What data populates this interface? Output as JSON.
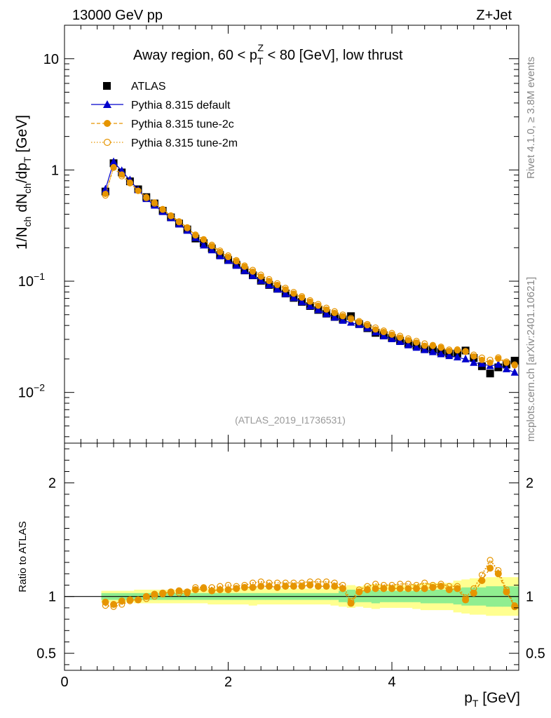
{
  "header": {
    "energy_label": "13000 GeV pp",
    "process_label": "Z+Jet"
  },
  "side_labels": {
    "rivet": "Rivet 4.1.0, ≥ 3.8M events",
    "mcplots": "mcplots.cern.ch [arXiv:2401.10621]"
  },
  "watermark": "(ATLAS_2019_I1736531)",
  "chart_data": [
    {
      "type": "scatter",
      "panel": "main",
      "title": "Away region, 60 < p_T^Z < 80 [GeV], low thrust",
      "title_parts": {
        "pre": "Away region, 60 < p",
        "sup": "Z",
        "sub": "T",
        "post": " < 80 [GeV], low thrust"
      },
      "ylabel": "1/N_ch dN_ch/dp_T [GeV]",
      "y_scale": "log",
      "xlim": [
        0,
        5.55
      ],
      "ylim": [
        0.0035,
        20
      ],
      "y_ticks": [
        {
          "value": 10,
          "label": "10"
        },
        {
          "value": 1,
          "label": "1"
        },
        {
          "value": 0.1,
          "label": "10",
          "exp": "−1"
        },
        {
          "value": 0.01,
          "label": "10",
          "exp": "−2"
        }
      ],
      "legend_position": "top-left",
      "x": [
        0.5,
        0.6,
        0.7,
        0.8,
        0.9,
        1.0,
        1.1,
        1.2,
        1.3,
        1.4,
        1.5,
        1.6,
        1.7,
        1.8,
        1.9,
        2.0,
        2.1,
        2.2,
        2.3,
        2.4,
        2.5,
        2.6,
        2.7,
        2.8,
        2.9,
        3.0,
        3.1,
        3.2,
        3.3,
        3.4,
        3.5,
        3.6,
        3.7,
        3.8,
        3.9,
        4.0,
        4.1,
        4.2,
        4.3,
        4.4,
        4.5,
        4.6,
        4.7,
        4.8,
        4.9,
        5.0,
        5.1,
        5.2,
        5.3,
        5.4,
        5.5
      ],
      "series": [
        {
          "name": "ATLAS",
          "marker": "square",
          "color": "#000000",
          "values": [
            0.64,
            1.15,
            0.95,
            0.79,
            0.67,
            0.57,
            0.5,
            0.43,
            0.375,
            0.33,
            0.292,
            0.242,
            0.22,
            0.197,
            0.172,
            0.155,
            0.141,
            0.125,
            0.113,
            0.101,
            0.0925,
            0.0855,
            0.0775,
            0.0708,
            0.0652,
            0.0598,
            0.0552,
            0.0511,
            0.0477,
            0.0455,
            0.0485,
            0.0412,
            0.0378,
            0.0343,
            0.0326,
            0.0309,
            0.0291,
            0.0275,
            0.0263,
            0.0245,
            0.0242,
            0.0231,
            0.0223,
            0.0224,
            0.0238,
            0.0204,
            0.0172,
            0.0148,
            0.0168,
            0.0178,
            0.0193
          ]
        },
        {
          "name": "Pythia 8.315 default",
          "marker": "triangle",
          "line": "solid",
          "color": "#0000cc",
          "values": [
            0.67,
            1.18,
            0.98,
            0.81,
            0.66,
            0.55,
            0.48,
            0.42,
            0.37,
            0.325,
            0.285,
            0.245,
            0.21,
            0.19,
            0.168,
            0.153,
            0.138,
            0.124,
            0.112,
            0.101,
            0.0922,
            0.0845,
            0.0768,
            0.0708,
            0.065,
            0.0595,
            0.0552,
            0.0507,
            0.0472,
            0.0442,
            0.0425,
            0.0405,
            0.0378,
            0.0348,
            0.0321,
            0.0302,
            0.0285,
            0.0266,
            0.0253,
            0.0241,
            0.0231,
            0.0221,
            0.0213,
            0.0207,
            0.0199,
            0.0185,
            0.0181,
            0.0173,
            0.0178,
            0.0162,
            0.0151
          ]
        },
        {
          "name": "Pythia 8.315 tune-2c",
          "marker": "circle",
          "line": "dashed",
          "color": "#e69500",
          "values": [
            0.61,
            1.06,
            0.91,
            0.77,
            0.65,
            0.57,
            0.51,
            0.445,
            0.39,
            0.345,
            0.305,
            0.258,
            0.236,
            0.207,
            0.183,
            0.165,
            0.151,
            0.135,
            0.122,
            0.11,
            0.1005,
            0.0925,
            0.0842,
            0.0772,
            0.0712,
            0.0655,
            0.0602,
            0.0556,
            0.0518,
            0.0485,
            0.0455,
            0.0428,
            0.0402,
            0.0368,
            0.0349,
            0.0331,
            0.0311,
            0.0295,
            0.0281,
            0.0263,
            0.0262,
            0.0252,
            0.0236,
            0.0239,
            0.0232,
            0.0211,
            0.0196,
            0.0185,
            0.0201,
            0.0185,
            0.0175
          ]
        },
        {
          "name": "Pythia 8.315 tune-2m",
          "marker": "open-circle",
          "line": "dotted",
          "color": "#e69500",
          "values": [
            0.59,
            1.05,
            0.88,
            0.76,
            0.65,
            0.56,
            0.5,
            0.44,
            0.385,
            0.34,
            0.3,
            0.262,
            0.238,
            0.212,
            0.188,
            0.17,
            0.154,
            0.138,
            0.126,
            0.114,
            0.104,
            0.0955,
            0.0868,
            0.0796,
            0.0731,
            0.0673,
            0.0622,
            0.0575,
            0.0535,
            0.05,
            0.0465,
            0.0437,
            0.0411,
            0.0382,
            0.0359,
            0.0341,
            0.0322,
            0.0305,
            0.029,
            0.0275,
            0.0266,
            0.0257,
            0.0242,
            0.0243,
            0.0235,
            0.0218,
            0.0205,
            0.0196,
            0.0206,
            0.0189,
            0.0178
          ]
        }
      ]
    },
    {
      "type": "scatter",
      "panel": "ratio",
      "ylabel": "Ratio to ATLAS",
      "xlabel": "p_T [GeV]",
      "xlabel_parts": {
        "main": "p",
        "sub": "T",
        "post": " [GeV]"
      },
      "xlim": [
        0,
        5.55
      ],
      "ylim": [
        0.35,
        2.35
      ],
      "x_ticks": [
        {
          "value": 0,
          "label": "0"
        },
        {
          "value": 2,
          "label": "2"
        },
        {
          "value": 4,
          "label": "4"
        }
      ],
      "y_ticks": [
        {
          "value": 2,
          "label": "2"
        },
        {
          "value": 1,
          "label": "1"
        },
        {
          "value": 0.5,
          "label": "0.5"
        }
      ],
      "x": [
        0.5,
        0.6,
        0.7,
        0.8,
        0.9,
        1.0,
        1.1,
        1.2,
        1.3,
        1.4,
        1.5,
        1.6,
        1.7,
        1.8,
        1.9,
        2.0,
        2.1,
        2.2,
        2.3,
        2.4,
        2.5,
        2.6,
        2.7,
        2.8,
        2.9,
        3.0,
        3.1,
        3.2,
        3.3,
        3.4,
        3.5,
        3.6,
        3.7,
        3.8,
        3.9,
        4.0,
        4.1,
        4.2,
        4.3,
        4.4,
        4.5,
        4.6,
        4.7,
        4.8,
        4.9,
        5.0,
        5.1,
        5.2,
        5.3,
        5.4,
        5.5
      ],
      "uncertainty_bands": {
        "stat_color": "#90ee90",
        "total_color": "#ffff90",
        "stat_halfwidth": [
          0.03,
          0.03,
          0.03,
          0.03,
          0.03,
          0.03,
          0.03,
          0.03,
          0.03,
          0.03,
          0.03,
          0.03,
          0.03,
          0.03,
          0.03,
          0.03,
          0.03,
          0.03,
          0.03,
          0.03,
          0.03,
          0.03,
          0.03,
          0.03,
          0.03,
          0.03,
          0.03,
          0.03,
          0.03,
          0.05,
          0.06,
          0.05,
          0.05,
          0.06,
          0.05,
          0.05,
          0.05,
          0.05,
          0.05,
          0.06,
          0.06,
          0.06,
          0.06,
          0.07,
          0.08,
          0.08,
          0.08,
          0.09,
          0.09,
          0.09,
          0.09
        ],
        "total_halfwidth": [
          0.05,
          0.05,
          0.05,
          0.05,
          0.06,
          0.06,
          0.06,
          0.06,
          0.06,
          0.06,
          0.06,
          0.06,
          0.06,
          0.07,
          0.07,
          0.07,
          0.07,
          0.07,
          0.08,
          0.07,
          0.07,
          0.07,
          0.07,
          0.07,
          0.07,
          0.07,
          0.07,
          0.07,
          0.08,
          0.09,
          0.1,
          0.09,
          0.1,
          0.11,
          0.1,
          0.1,
          0.1,
          0.1,
          0.11,
          0.12,
          0.12,
          0.12,
          0.12,
          0.14,
          0.15,
          0.16,
          0.16,
          0.17,
          0.17,
          0.17,
          0.17
        ]
      },
      "reference_line": 1,
      "series": [
        {
          "name": "Pythia 8.315 default",
          "marker": "triangle",
          "line": "solid",
          "color": "#0000cc",
          "values": [
            1.05,
            1.03,
            1.03,
            1.03,
            0.98,
            0.97,
            0.96,
            0.98,
            0.98,
            0.99,
            0.98,
            1.03,
            0.96,
            0.96,
            0.98,
            0.99,
            0.99,
            0.99,
            1.0,
            1.0,
            1.0,
            0.99,
            0.99,
            1.0,
            1.0,
            0.99,
            1.0,
            0.99,
            0.99,
            0.97,
            0.88,
            0.92,
            0.97,
            1.01,
            0.98,
            0.98,
            0.98,
            0.97,
            0.96,
            0.98,
            0.96,
            0.96,
            0.96,
            0.93,
            0.84,
            0.91,
            0.96,
            1.03,
            1.06,
            0.91,
            0.79
          ]
        },
        {
          "name": "Pythia 8.315 tune-2c",
          "marker": "circle",
          "line": "dashed",
          "color": "#e69500",
          "values": [
            0.95,
            0.93,
            0.96,
            0.97,
            0.97,
            1.0,
            1.02,
            1.03,
            1.04,
            1.05,
            1.04,
            1.06,
            1.07,
            1.05,
            1.06,
            1.06,
            1.07,
            1.08,
            1.08,
            1.09,
            1.09,
            1.08,
            1.09,
            1.09,
            1.09,
            1.1,
            1.09,
            1.09,
            1.09,
            1.07,
            0.94,
            1.04,
            1.06,
            1.07,
            1.07,
            1.07,
            1.07,
            1.07,
            1.07,
            1.07,
            1.08,
            1.09,
            1.06,
            1.07,
            0.97,
            1.03,
            1.14,
            1.25,
            1.2,
            1.04,
            0.91
          ]
        },
        {
          "name": "Pythia 8.315 tune-2m",
          "marker": "open-circle",
          "line": "dotted",
          "color": "#e69500",
          "values": [
            0.92,
            0.91,
            0.93,
            0.96,
            0.97,
            0.98,
            1.0,
            1.02,
            1.03,
            1.03,
            1.03,
            1.08,
            1.08,
            1.08,
            1.09,
            1.1,
            1.09,
            1.1,
            1.12,
            1.13,
            1.12,
            1.12,
            1.12,
            1.12,
            1.12,
            1.13,
            1.13,
            1.13,
            1.12,
            1.1,
            0.96,
            1.06,
            1.09,
            1.11,
            1.1,
            1.1,
            1.11,
            1.11,
            1.1,
            1.12,
            1.1,
            1.11,
            1.09,
            1.09,
            0.99,
            1.07,
            1.19,
            1.32,
            1.23,
            1.06,
            0.92
          ]
        }
      ]
    }
  ]
}
